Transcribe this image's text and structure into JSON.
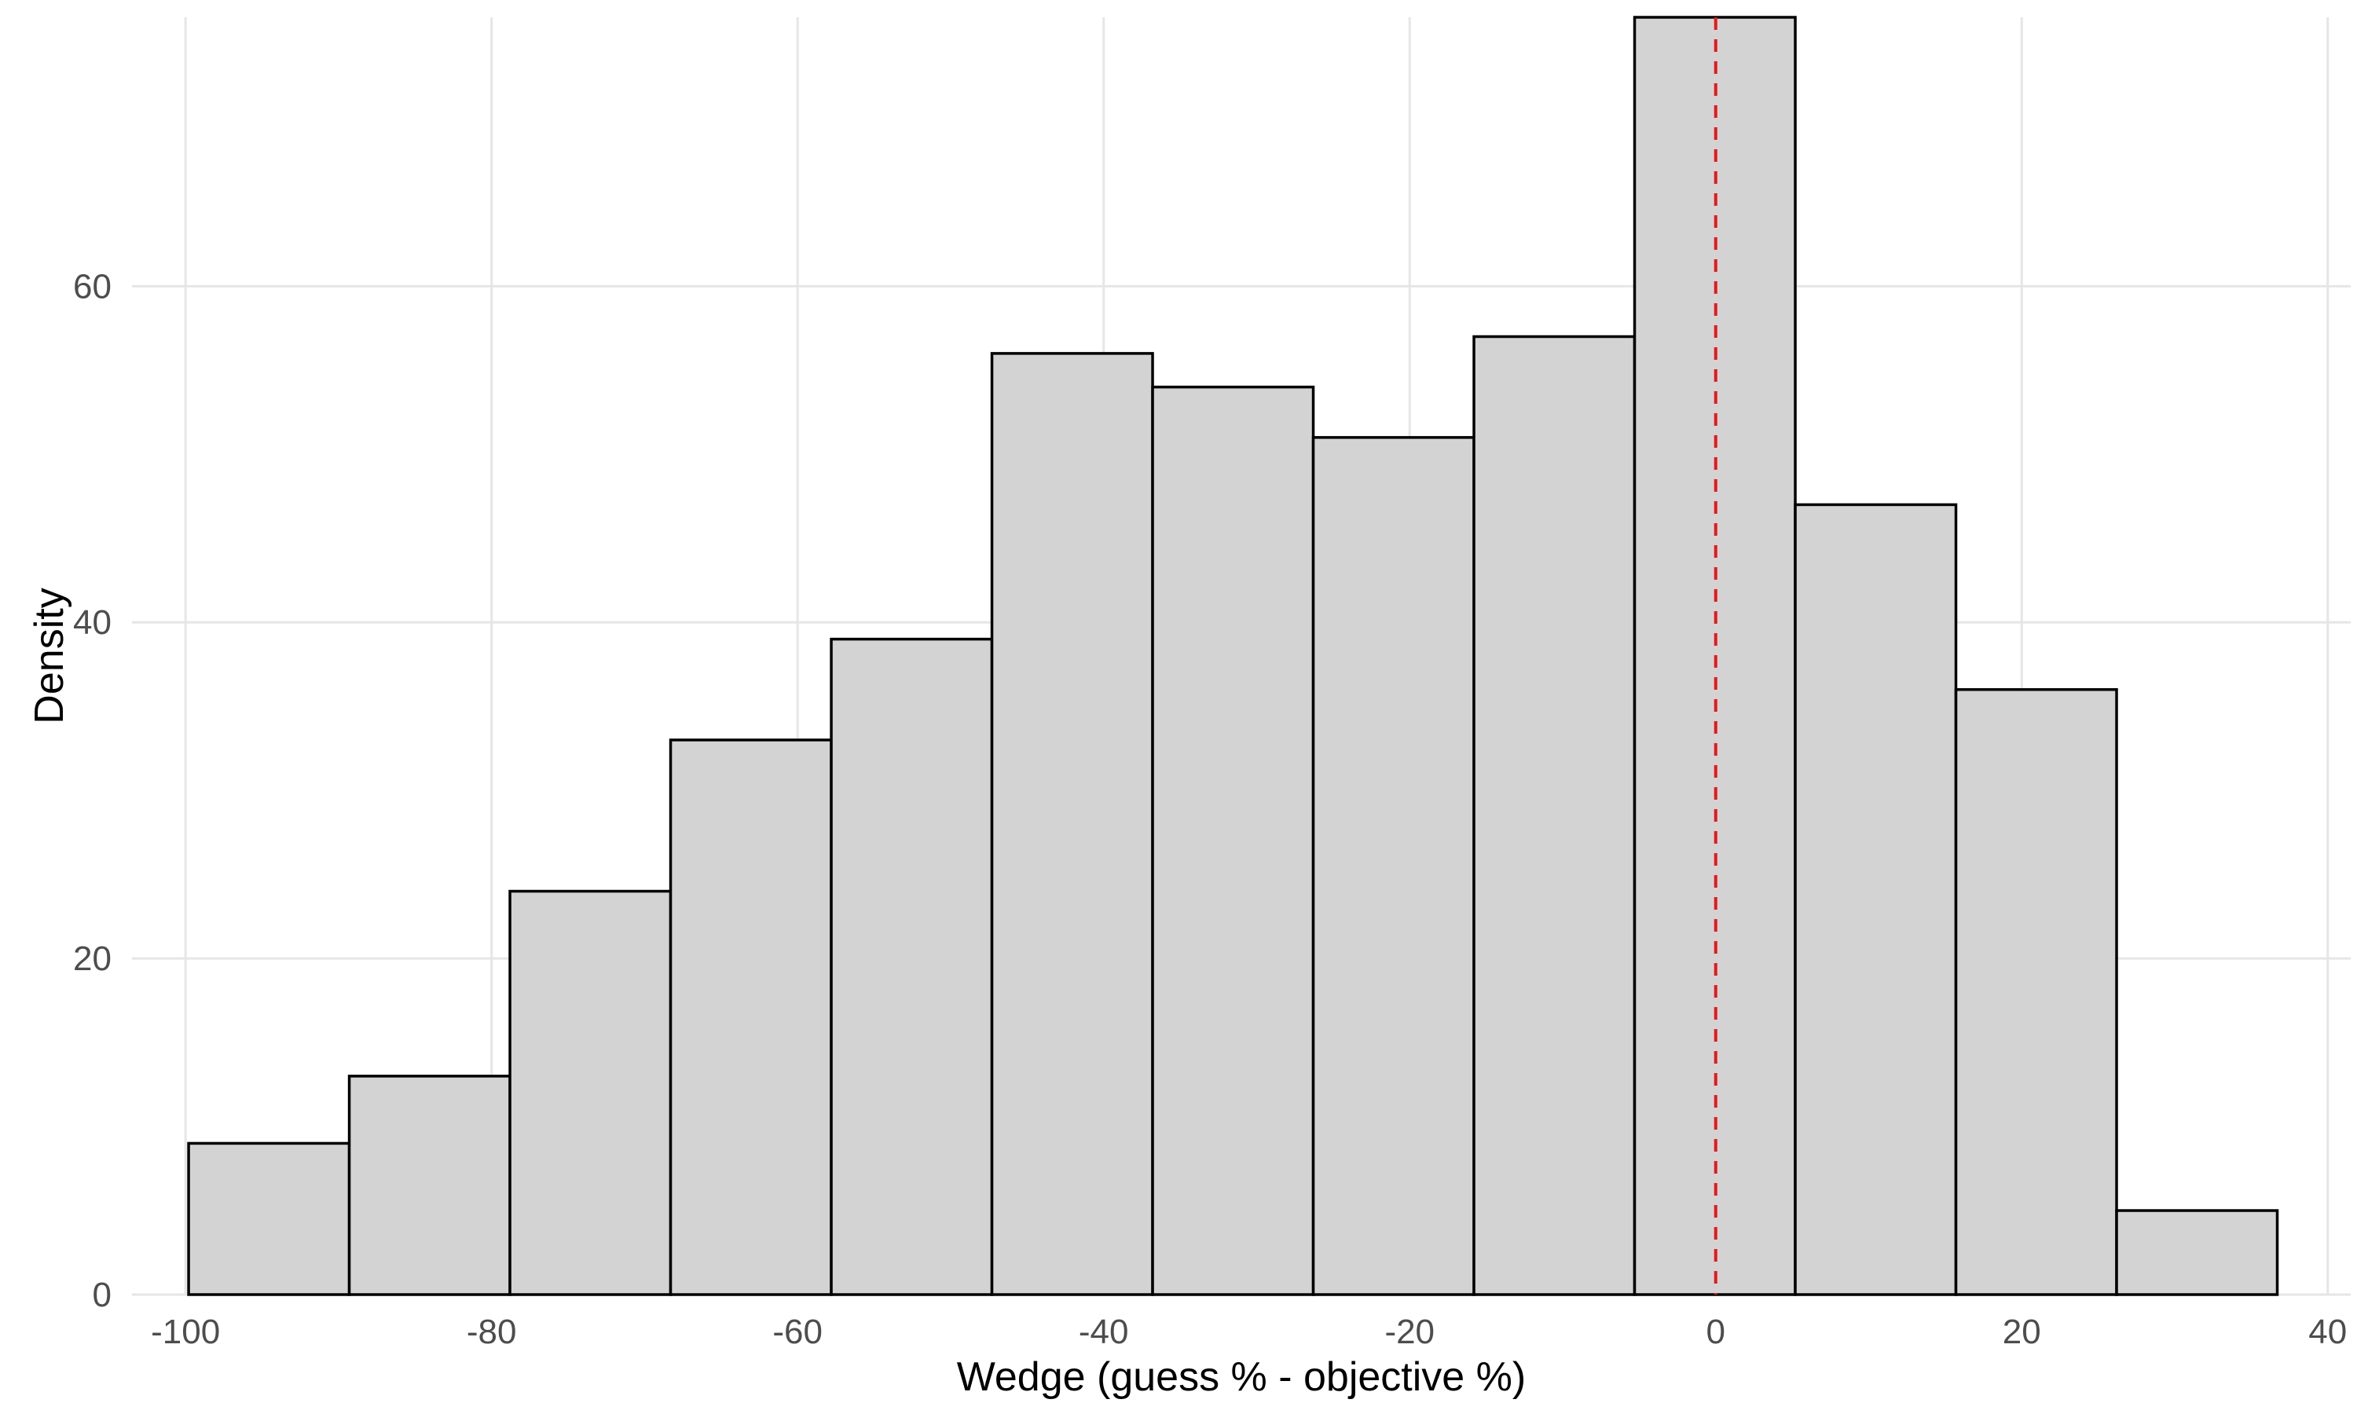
{
  "chart_data": {
    "type": "bar",
    "subtype": "histogram",
    "title": "",
    "xlabel": "Wedge (guess % - objective %)",
    "ylabel": "Density",
    "xlim": [
      -103.5,
      41.5
    ],
    "ylim": [
      0,
      76
    ],
    "grid": true,
    "legend": "none",
    "x_ticks": [
      -100,
      -80,
      -60,
      -40,
      -20,
      0,
      20,
      40
    ],
    "x_tick_labels": [
      "-100",
      "-80",
      "-60",
      "-40",
      "-20",
      "0",
      "20",
      "40"
    ],
    "y_ticks": [
      0,
      20,
      40,
      60
    ],
    "y_tick_labels": [
      "0",
      "20",
      "40",
      "60"
    ],
    "bins": [
      {
        "x0": -99.8,
        "x1": -89.3,
        "value": 9
      },
      {
        "x0": -89.3,
        "x1": -78.8,
        "value": 13
      },
      {
        "x0": -78.8,
        "x1": -68.3,
        "value": 24
      },
      {
        "x0": -68.3,
        "x1": -57.8,
        "value": 33
      },
      {
        "x0": -57.8,
        "x1": -47.3,
        "value": 39
      },
      {
        "x0": -47.3,
        "x1": -36.8,
        "value": 56
      },
      {
        "x0": -36.8,
        "x1": -26.3,
        "value": 54
      },
      {
        "x0": -26.3,
        "x1": -15.8,
        "value": 51
      },
      {
        "x0": -15.8,
        "x1": -5.3,
        "value": 57
      },
      {
        "x0": -5.3,
        "x1": 5.2,
        "value": 76
      },
      {
        "x0": 5.2,
        "x1": 15.7,
        "value": 47
      },
      {
        "x0": 15.7,
        "x1": 26.2,
        "value": 36
      },
      {
        "x0": 26.2,
        "x1": 36.7,
        "value": 5
      }
    ],
    "reference_line": {
      "x": 0,
      "style": "dashed",
      "color": "#e31a1c"
    },
    "colors": {
      "bar_fill": "#d3d3d3",
      "bar_stroke": "#000000",
      "grid": "#e6e6e6"
    }
  }
}
